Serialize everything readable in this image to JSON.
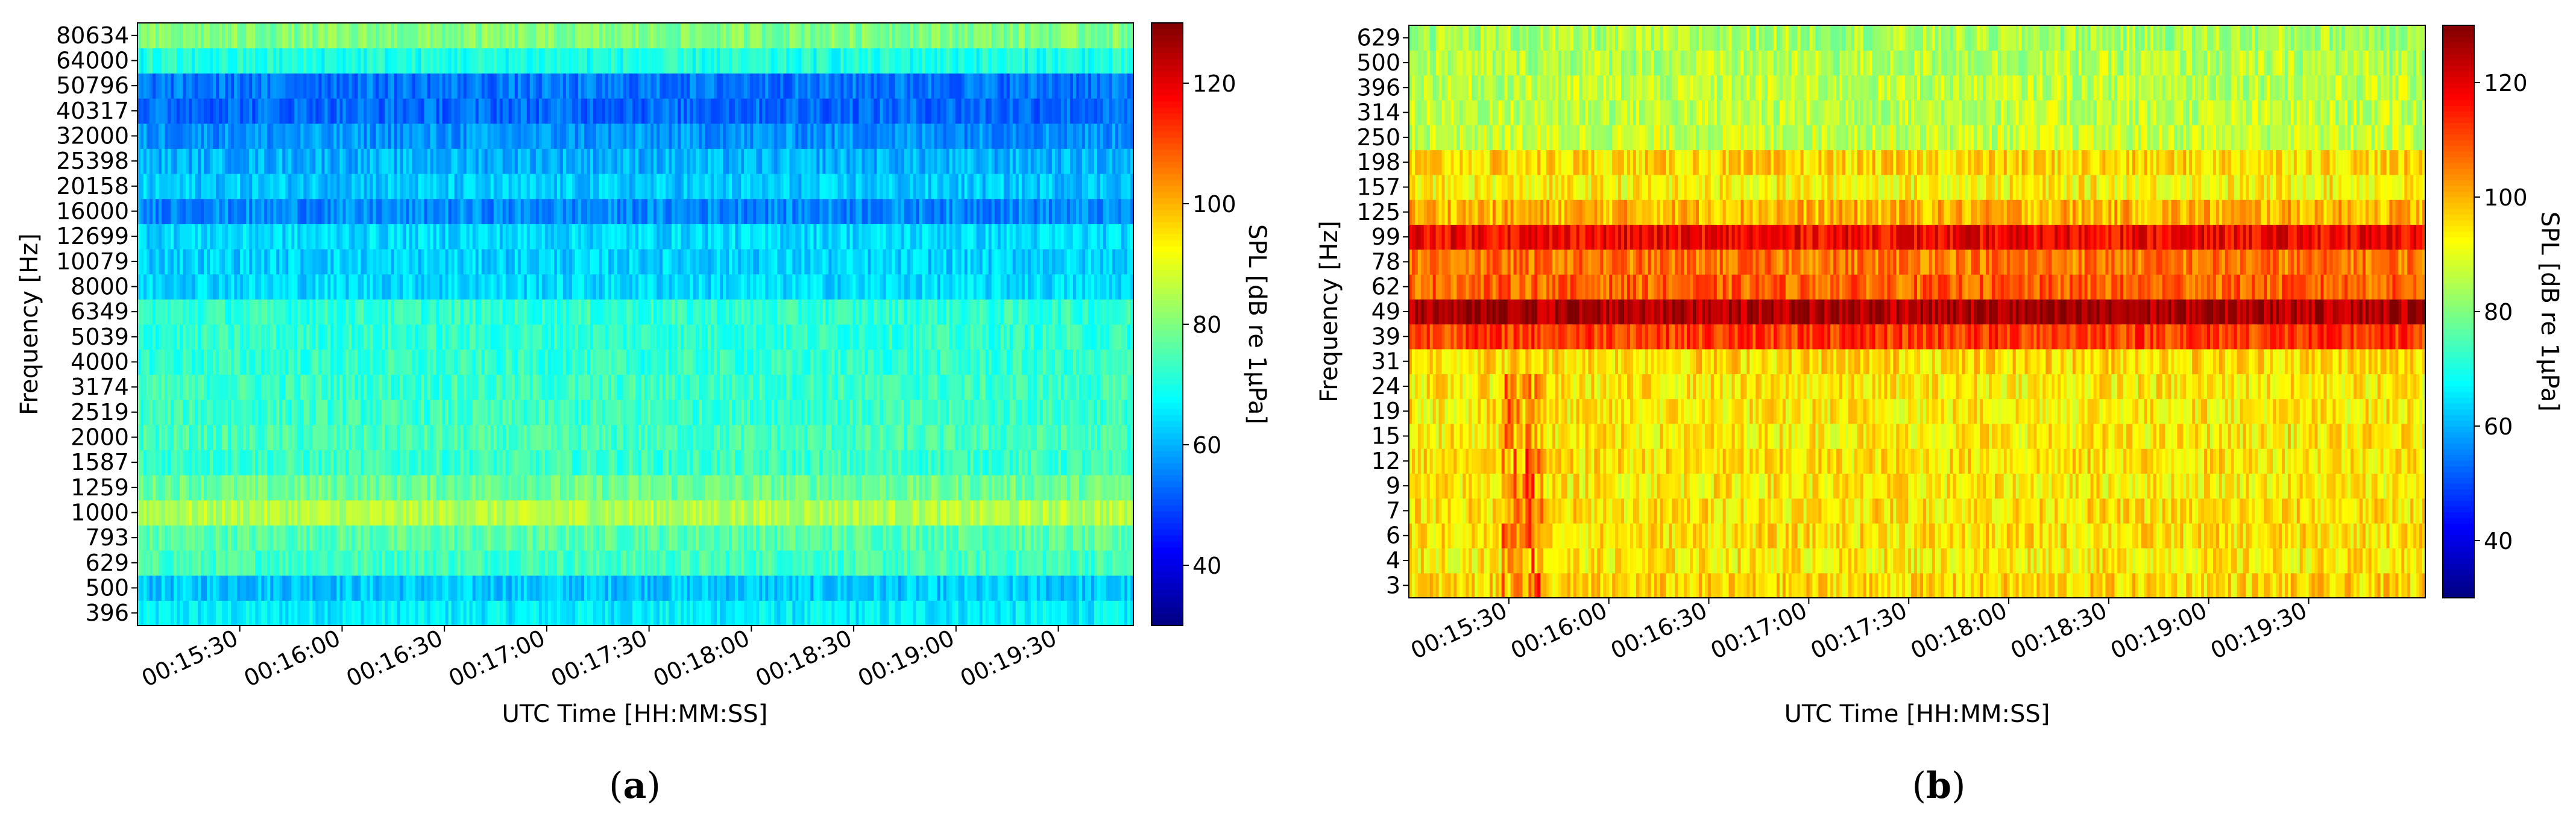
{
  "chart_data": [
    {
      "id": "a",
      "type": "heatmap",
      "caption_open": "(",
      "caption_letter": "a",
      "caption_close": ")",
      "xlabel": "UTC Time [HH:MM:SS]",
      "ylabel": "Frequency [Hz]",
      "x_ticks": [
        "00:15:30",
        "00:16:00",
        "00:16:30",
        "00:17:00",
        "00:17:30",
        "00:18:00",
        "00:18:30",
        "00:19:00",
        "00:19:30"
      ],
      "x_range_seconds": [
        900,
        1192
      ],
      "x_tick_seconds": [
        930,
        960,
        990,
        1020,
        1050,
        1080,
        1110,
        1140,
        1170
      ],
      "y_ticks": [
        "396",
        "500",
        "629",
        "793",
        "1000",
        "1259",
        "1587",
        "2000",
        "2519",
        "3174",
        "4000",
        "5039",
        "6349",
        "8000",
        "10079",
        "12699",
        "16000",
        "20158",
        "25398",
        "32000",
        "40317",
        "50796",
        "64000",
        "80634"
      ],
      "band_spl_db": [
        66,
        62,
        74,
        76,
        85,
        78,
        73,
        74,
        73,
        73,
        72,
        72,
        72,
        64,
        63,
        64,
        56,
        62,
        60,
        57,
        53,
        54,
        70,
        80
      ],
      "colorbar": {
        "label": "SPL [dB re 1μPa]",
        "range": [
          30,
          130
        ],
        "ticks": [
          "40",
          "60",
          "80",
          "100",
          "120"
        ],
        "tick_values": [
          40,
          60,
          80,
          100,
          120
        ]
      }
    },
    {
      "id": "b",
      "type": "heatmap",
      "caption_open": "(",
      "caption_letter": "b",
      "caption_close": ")",
      "xlabel": "UTC Time [HH:MM:SS]",
      "ylabel": "Frequency [Hz]",
      "x_ticks": [
        "00:15:30",
        "00:16:00",
        "00:16:30",
        "00:17:00",
        "00:17:30",
        "00:18:00",
        "00:18:30",
        "00:19:00",
        "00:19:30"
      ],
      "x_range_seconds": [
        900,
        1205
      ],
      "x_tick_seconds": [
        930,
        960,
        990,
        1020,
        1050,
        1080,
        1110,
        1140,
        1170
      ],
      "y_ticks": [
        "3",
        "4",
        "6",
        "7",
        "9",
        "12",
        "15",
        "19",
        "24",
        "31",
        "39",
        "49",
        "62",
        "78",
        "99",
        "125",
        "157",
        "198",
        "250",
        "314",
        "396",
        "500",
        "629"
      ],
      "band_spl_db": [
        96,
        94,
        95,
        95,
        94,
        95,
        94,
        94,
        94,
        96,
        112,
        126,
        108,
        106,
        118,
        100,
        93,
        96,
        87,
        86,
        86,
        85,
        84
      ],
      "colorbar": {
        "label": "SPL [dB re 1μPa]",
        "range": [
          30,
          130
        ],
        "ticks": [
          "40",
          "60",
          "80",
          "100",
          "120"
        ],
        "tick_values": [
          40,
          60,
          80,
          100,
          120
        ]
      }
    }
  ]
}
